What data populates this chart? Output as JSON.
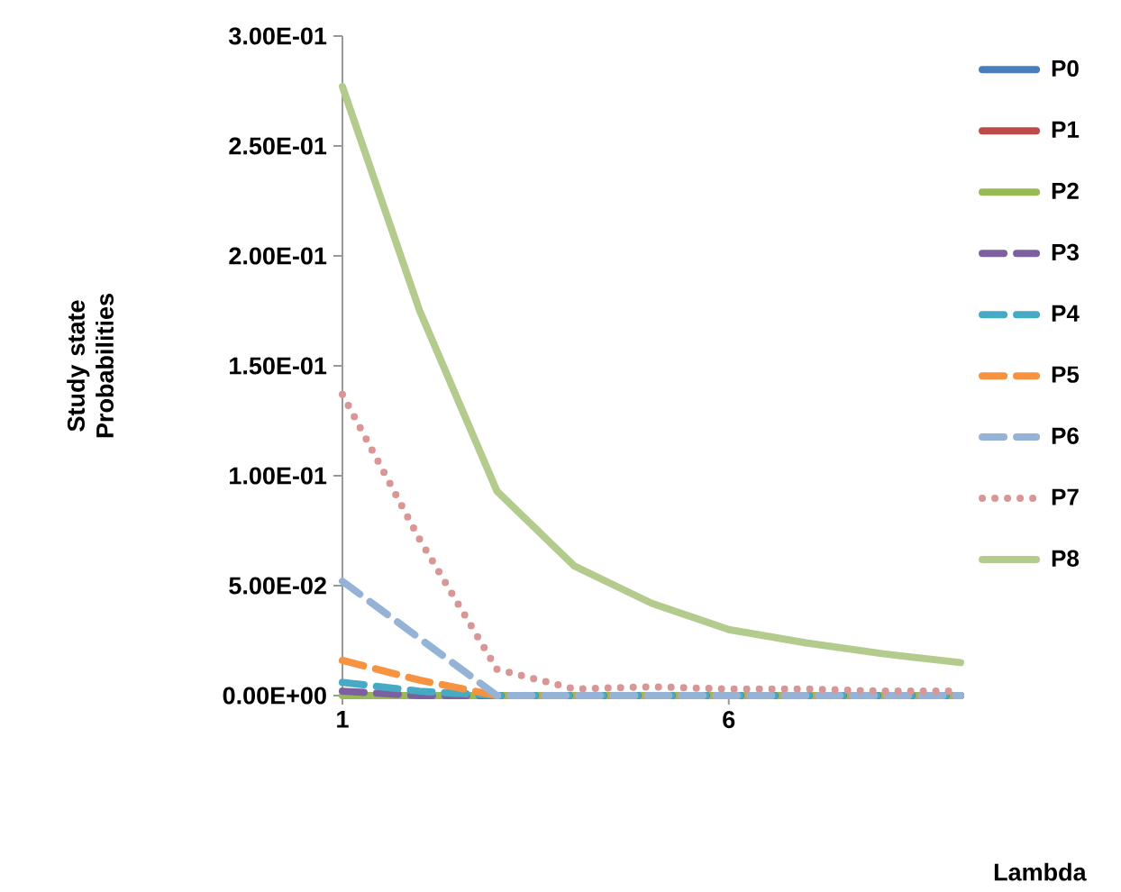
{
  "chart_data": {
    "type": "line",
    "annotations": [
      "Lambda"
    ],
    "ylabel": "Study state Probabilities",
    "categories": [
      "1",
      null,
      null,
      null,
      null,
      "6",
      null,
      null,
      null
    ],
    "ylim": [
      0,
      0.3
    ],
    "yticks": [
      {
        "value": 0,
        "label": "0.00E+00"
      },
      {
        "value": 0.05,
        "label": "5.00E-02"
      },
      {
        "value": 0.1,
        "label": "1.00E-01"
      },
      {
        "value": 0.15,
        "label": "1.50E-01"
      },
      {
        "value": 0.2,
        "label": "2.00E-01"
      },
      {
        "value": 0.25,
        "label": "2.50E-01"
      },
      {
        "value": 0.3,
        "label": "3.00E-01"
      }
    ],
    "grid": false,
    "legend": "right",
    "marker": "none",
    "series": [
      {
        "name": "P0",
        "color": "#4a7ebb",
        "line_style": "solid",
        "values": [
          null,
          null,
          null,
          null,
          null,
          null,
          null,
          null,
          null
        ]
      },
      {
        "name": "P1",
        "color": "#be4b48",
        "line_style": "solid",
        "values": [
          null,
          null,
          null,
          null,
          null,
          null,
          null,
          null,
          null
        ]
      },
      {
        "name": "P2",
        "color": "#98b954",
        "line_style": "solid",
        "values": [
          0,
          0,
          0,
          0,
          0,
          0,
          0,
          0,
          0
        ]
      },
      {
        "name": "P3",
        "color": "#7d60a0",
        "line_style": "dashed",
        "values": [
          0.002,
          0,
          0,
          0,
          0,
          0,
          0,
          0,
          0
        ]
      },
      {
        "name": "P4",
        "color": "#46aac5",
        "line_style": "dashed",
        "values": [
          0.006,
          0.002,
          0,
          0,
          0,
          0,
          0,
          0,
          0
        ]
      },
      {
        "name": "P5",
        "color": "#f69240",
        "line_style": "dashed",
        "values": [
          0.016,
          0.007,
          0,
          0,
          0,
          0,
          0,
          0,
          0
        ]
      },
      {
        "name": "P6",
        "color": "#95b3d7",
        "line_style": "dashed",
        "values": [
          0.052,
          0.026,
          0,
          0,
          0,
          0,
          0,
          0,
          0
        ]
      },
      {
        "name": "P7",
        "color": "#d99694",
        "line_style": "dotted",
        "values": [
          0.137,
          0.071,
          0.012,
          0.003,
          0.004,
          0.003,
          0.003,
          0.002,
          0.002
        ]
      },
      {
        "name": "P8",
        "color": "#b3cc8e",
        "line_style": "solid",
        "values": [
          0.277,
          0.175,
          0.093,
          0.059,
          0.042,
          0.03,
          0.024,
          0.019,
          0.015
        ]
      }
    ]
  }
}
